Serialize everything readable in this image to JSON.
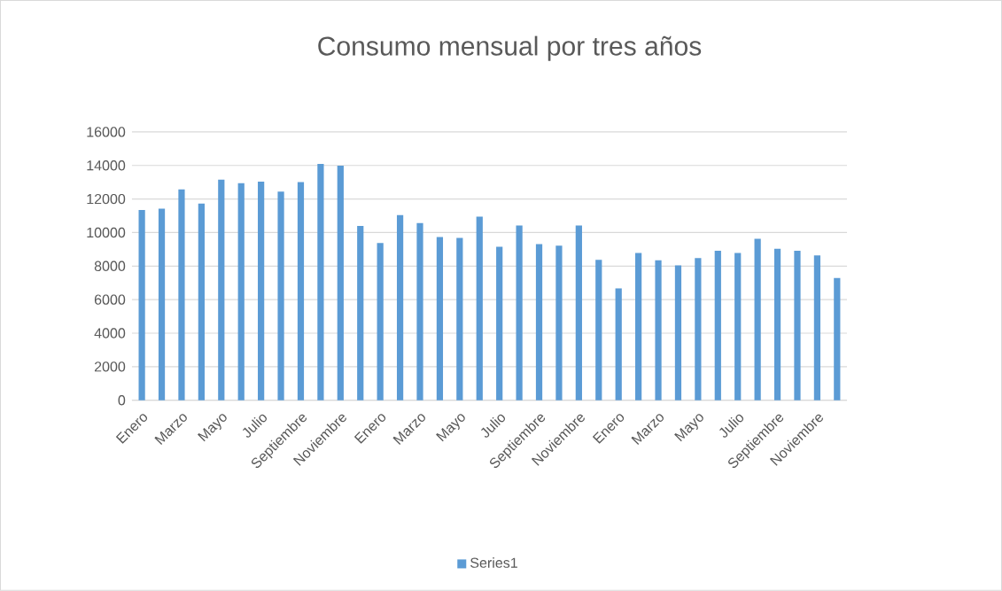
{
  "chart_data": {
    "type": "bar",
    "title": "Consumo mensual por tres años",
    "categories": [
      "Enero",
      null,
      "Marzo",
      null,
      "Mayo",
      null,
      "Julio",
      null,
      "Septiembre",
      null,
      "Noviembre",
      null,
      "Enero",
      null,
      "Marzo",
      null,
      "Mayo",
      null,
      "Julio",
      null,
      "Septiembre",
      null,
      "Noviembre",
      null,
      "Enero",
      null,
      "Marzo",
      null,
      "Mayo",
      null,
      "Julio",
      null,
      "Septiembre",
      null,
      "Noviembre",
      null
    ],
    "series": [
      {
        "name": "Series1",
        "color": "#5b9bd5",
        "values": [
          11350,
          11420,
          12570,
          11730,
          13150,
          12940,
          13040,
          12440,
          13010,
          14090,
          13990,
          10390,
          9380,
          11040,
          10560,
          9730,
          9680,
          10950,
          9150,
          10420,
          9310,
          9220,
          10420,
          8370,
          6670,
          8780,
          8340,
          8040,
          8480,
          8920,
          8780,
          9630,
          9030,
          8920,
          8640,
          7290
        ]
      }
    ],
    "ylim": [
      0,
      16000
    ],
    "yticks": [
      0,
      2000,
      4000,
      6000,
      8000,
      10000,
      12000,
      14000,
      16000
    ],
    "grid": "y",
    "legend": "bottom"
  }
}
